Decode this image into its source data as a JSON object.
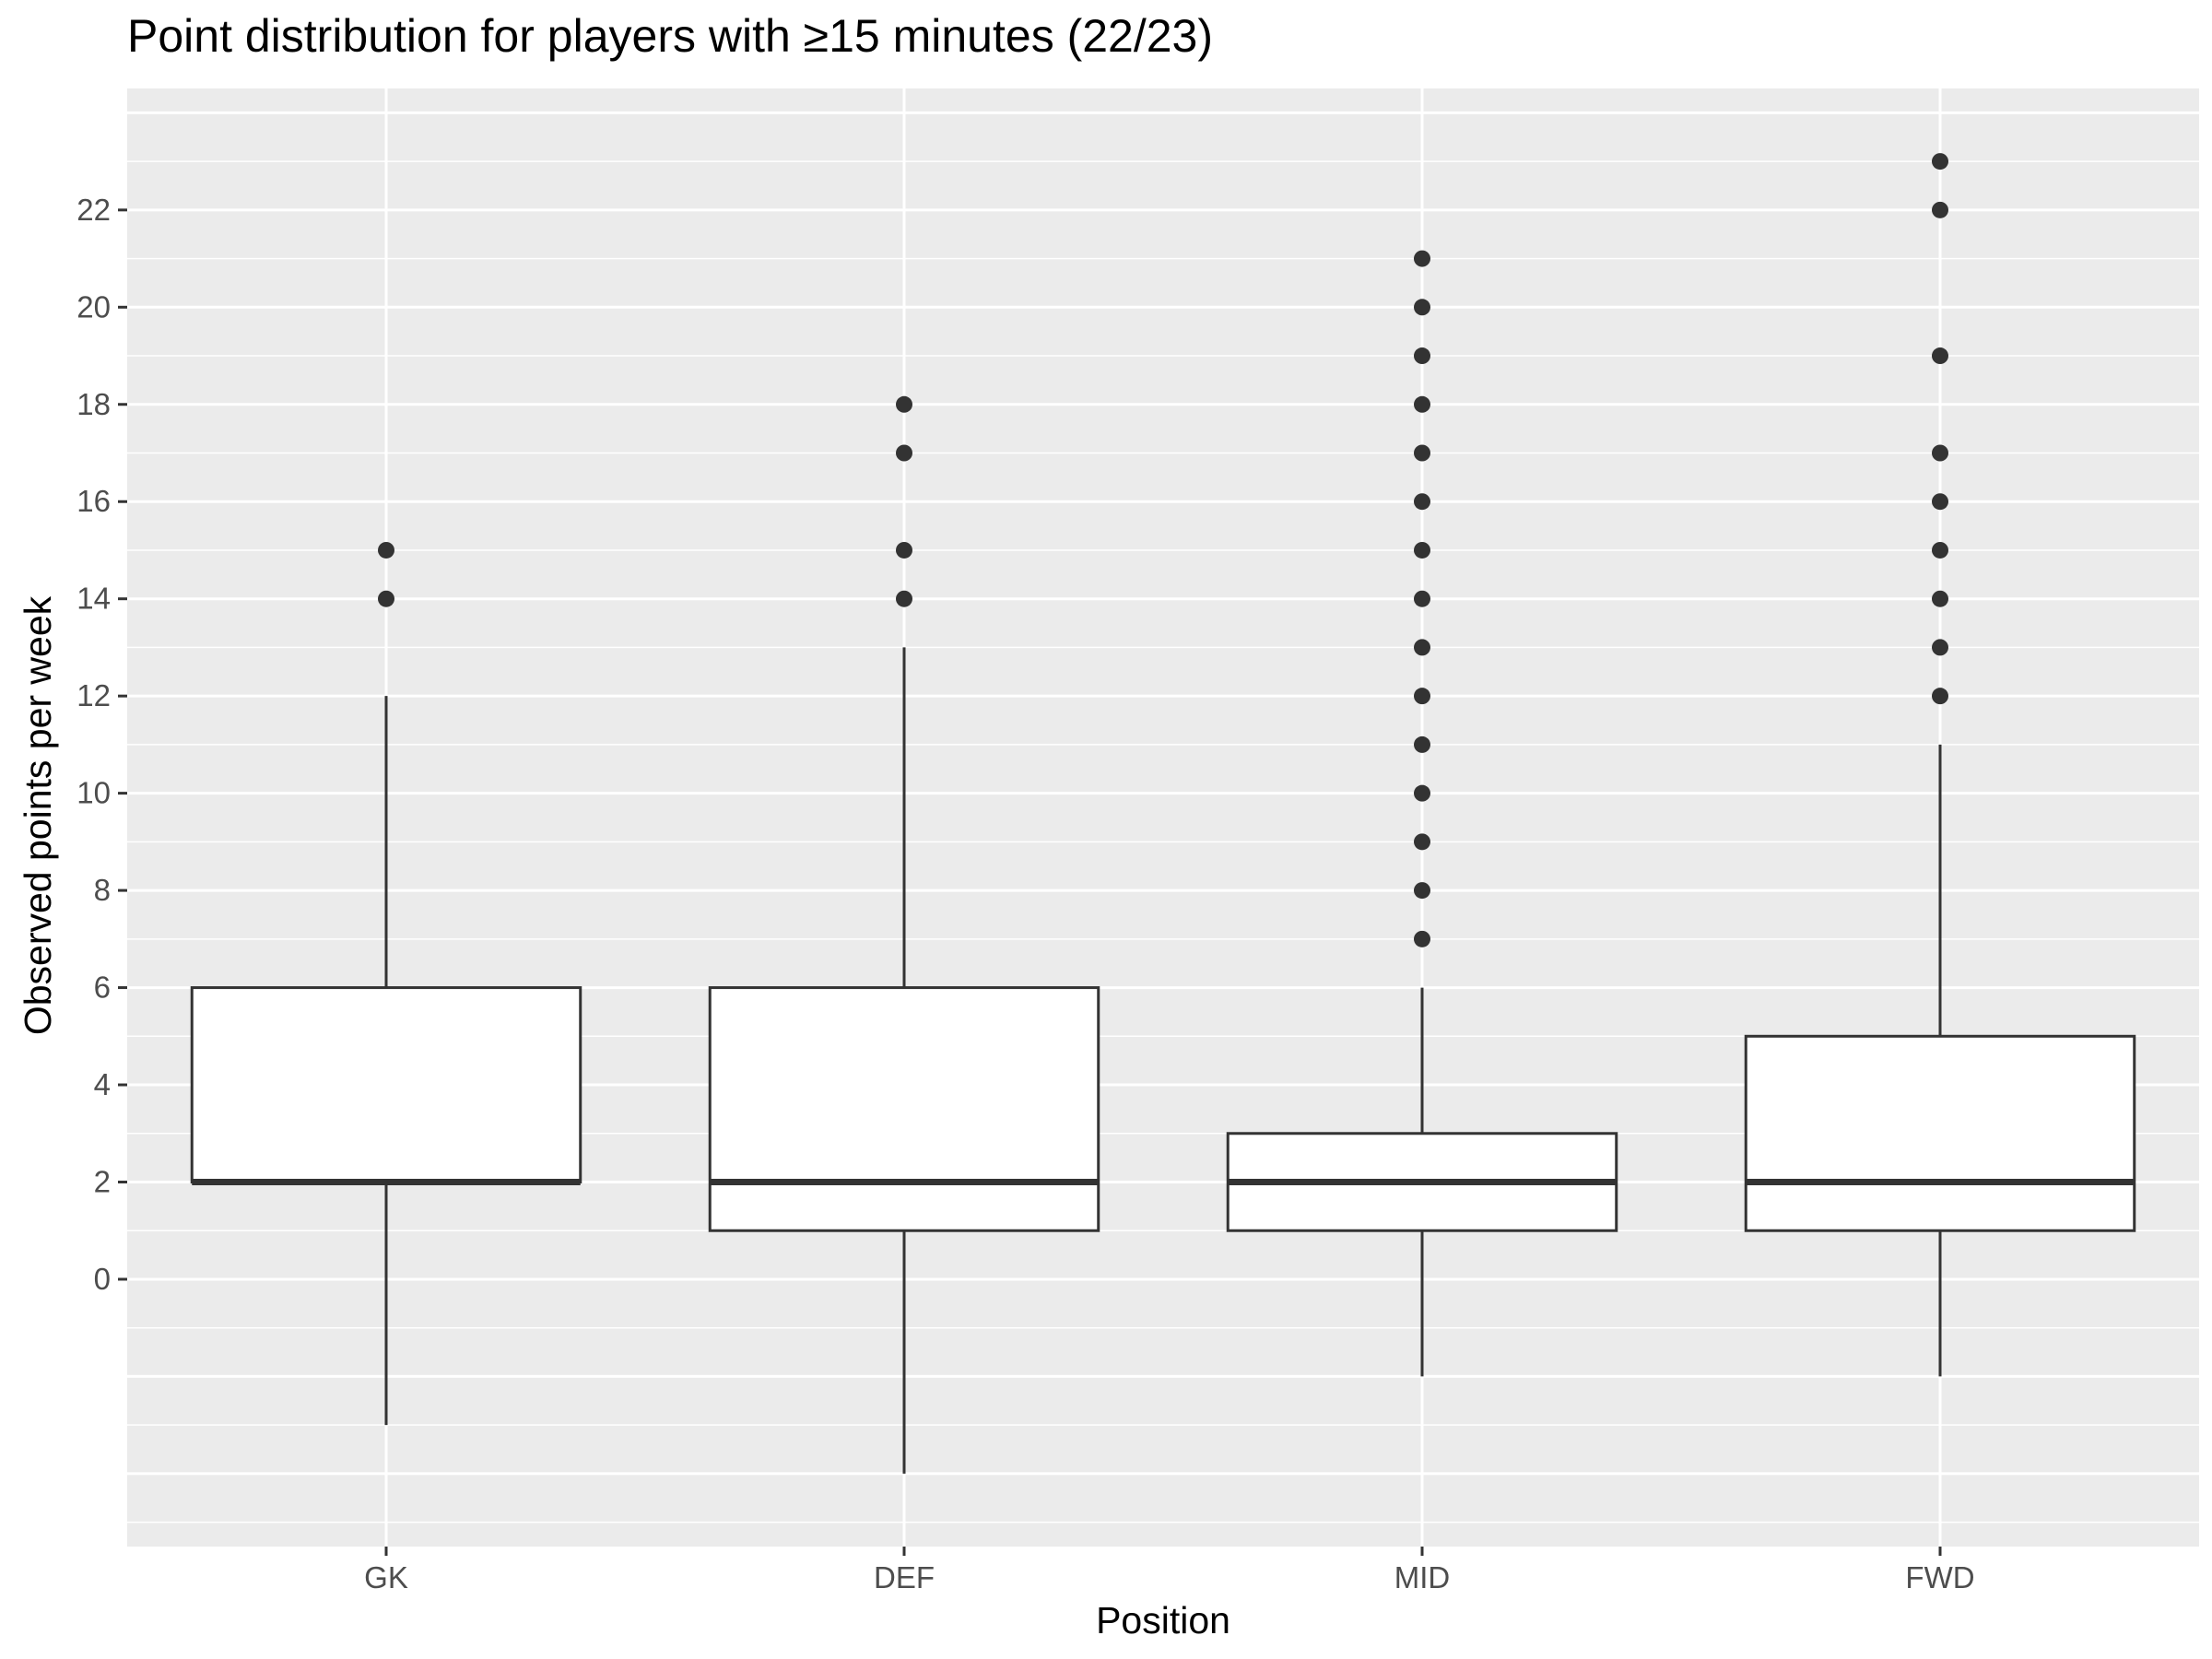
{
  "chart_data": {
    "type": "boxplot",
    "title": "Point distribution for players with ≥15 minutes (22/23)",
    "xlabel": "Position",
    "ylabel": "Observed points per week",
    "ylim": [
      -5.5,
      24.5
    ],
    "yticks": [
      0,
      2,
      4,
      6,
      8,
      10,
      12,
      14,
      16,
      18,
      20,
      22
    ],
    "grid": true,
    "categories": [
      "GK",
      "DEF",
      "MID",
      "FWD"
    ],
    "boxes": [
      {
        "category": "GK",
        "whisker_low": -3,
        "q1": 2,
        "median": 2,
        "q3": 6,
        "whisker_high": 12,
        "outliers": [
          14,
          15
        ]
      },
      {
        "category": "DEF",
        "whisker_low": -4,
        "q1": 1,
        "median": 2,
        "q3": 6,
        "whisker_high": 13,
        "outliers": [
          14,
          15,
          17,
          18
        ]
      },
      {
        "category": "MID",
        "whisker_low": -2,
        "q1": 1,
        "median": 2,
        "q3": 3,
        "whisker_high": 6,
        "outliers": [
          7,
          8,
          9,
          10,
          11,
          12,
          13,
          14,
          15,
          16,
          17,
          18,
          19,
          20,
          21
        ]
      },
      {
        "category": "FWD",
        "whisker_low": -2,
        "q1": 1,
        "median": 2,
        "q3": 5,
        "whisker_high": 11,
        "outliers": [
          12,
          13,
          14,
          15,
          16,
          17,
          19,
          22,
          23
        ]
      }
    ],
    "colors": {
      "panel": "#ebebeb",
      "grid": "#ffffff",
      "box_fill": "#ffffff",
      "stroke": "#333333"
    }
  }
}
